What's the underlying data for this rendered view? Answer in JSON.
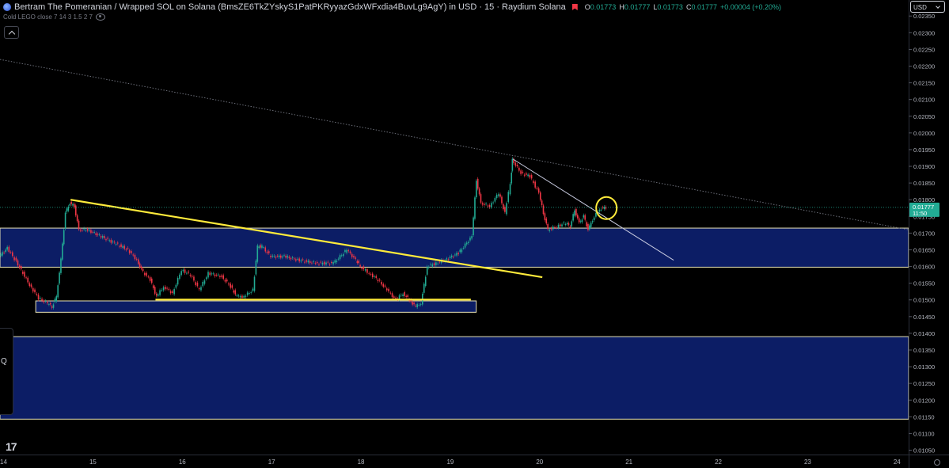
{
  "header": {
    "title": "Bertram The Pomeranian / Wrapped SOL on Solana (BmsZE6TkZYskyS1PatPKRyyazGdxWFxdia4BuvLg9AgY) in USD · 15 · Raydium Solana",
    "ohlc": [
      {
        "label": "O",
        "value": "0.01773"
      },
      {
        "label": "H",
        "value": "0.01777"
      },
      {
        "label": "L",
        "value": "0.01773"
      },
      {
        "label": "C",
        "value": "0.01777"
      },
      {
        "label": "",
        "value": "+0.00004 (+0.20%)"
      }
    ],
    "indicator": "Cold LEGO close 7 14 3 1.5 2 7",
    "currency": "USD",
    "logo": "17"
  },
  "icons": {
    "eye": "eye-icon",
    "collapse": "chevron-up-icon",
    "settings": "gear-icon",
    "logo": "tradingview-logo-icon"
  },
  "colors": {
    "background": "#000000",
    "up": "#22ab94",
    "down": "#f23645",
    "zone_fill": "#0d1f6e",
    "trend_yellow": "#ffeb3b"
  },
  "side_panel": {
    "label": "Q"
  },
  "chart_data": {
    "type": "candlestick",
    "title": "",
    "x_ticks": [
      "14",
      "15",
      "16",
      "17",
      "18",
      "19",
      "20",
      "21",
      "22",
      "23",
      "24"
    ],
    "x_range": [
      13.96,
      24.13
    ],
    "y_range": [
      0.01037,
      0.02398
    ],
    "y_ticks": [
      "0.02350",
      "0.02300",
      "0.02250",
      "0.02200",
      "0.02150",
      "0.02100",
      "0.02050",
      "0.02000",
      "0.01950",
      "0.01900",
      "0.01850",
      "0.01800",
      "0.01750",
      "0.01700",
      "0.01650",
      "0.01600",
      "0.01550",
      "0.01500",
      "0.01450",
      "0.01400",
      "0.01350",
      "0.01300",
      "0.01250",
      "0.01200",
      "0.01150",
      "0.01100",
      "0.01050"
    ],
    "current_price": {
      "value": "0.01777",
      "countdown": "11:50"
    },
    "price_path": [
      [
        13.96,
        0.0163
      ],
      [
        14.05,
        0.01655
      ],
      [
        14.15,
        0.01615
      ],
      [
        14.3,
        0.01545
      ],
      [
        14.4,
        0.01505
      ],
      [
        14.5,
        0.0149
      ],
      [
        14.55,
        0.0148
      ],
      [
        14.6,
        0.0151
      ],
      [
        14.65,
        0.0162
      ],
      [
        14.7,
        0.0176
      ],
      [
        14.75,
        0.0179
      ],
      [
        14.8,
        0.0178
      ],
      [
        14.85,
        0.0171
      ],
      [
        14.95,
        0.0171
      ],
      [
        15.1,
        0.0169
      ],
      [
        15.25,
        0.0167
      ],
      [
        15.4,
        0.0165
      ],
      [
        15.5,
        0.0162
      ],
      [
        15.55,
        0.0159
      ],
      [
        15.65,
        0.0156
      ],
      [
        15.72,
        0.0151
      ],
      [
        15.8,
        0.0154
      ],
      [
        15.9,
        0.0152
      ],
      [
        16.0,
        0.0159
      ],
      [
        16.1,
        0.01575
      ],
      [
        16.2,
        0.0153
      ],
      [
        16.3,
        0.0158
      ],
      [
        16.45,
        0.0157
      ],
      [
        16.55,
        0.0154
      ],
      [
        16.62,
        0.0151
      ],
      [
        16.7,
        0.0151
      ],
      [
        16.8,
        0.0153
      ],
      [
        16.85,
        0.0166
      ],
      [
        16.9,
        0.0166
      ],
      [
        17.0,
        0.0163
      ],
      [
        17.15,
        0.0163
      ],
      [
        17.3,
        0.0162
      ],
      [
        17.5,
        0.0161
      ],
      [
        17.7,
        0.0161
      ],
      [
        17.85,
        0.0165
      ],
      [
        17.95,
        0.0162
      ],
      [
        18.0,
        0.016
      ],
      [
        18.1,
        0.0158
      ],
      [
        18.2,
        0.0156
      ],
      [
        18.3,
        0.0153
      ],
      [
        18.4,
        0.015
      ],
      [
        18.48,
        0.0152
      ],
      [
        18.55,
        0.015
      ],
      [
        18.62,
        0.0148
      ],
      [
        18.68,
        0.0149
      ],
      [
        18.75,
        0.016
      ],
      [
        18.85,
        0.0161
      ],
      [
        18.95,
        0.0162
      ],
      [
        19.1,
        0.0164
      ],
      [
        19.25,
        0.0169
      ],
      [
        19.3,
        0.0186
      ],
      [
        19.35,
        0.0179
      ],
      [
        19.45,
        0.0178
      ],
      [
        19.55,
        0.0182
      ],
      [
        19.62,
        0.0176
      ],
      [
        19.68,
        0.0185
      ],
      [
        19.7,
        0.0192
      ],
      [
        19.8,
        0.0188
      ],
      [
        19.9,
        0.0187
      ],
      [
        20.0,
        0.0182
      ],
      [
        20.05,
        0.0176
      ],
      [
        20.1,
        0.0171
      ],
      [
        20.2,
        0.0172
      ],
      [
        20.3,
        0.0173
      ],
      [
        20.35,
        0.0172
      ],
      [
        20.4,
        0.0177
      ],
      [
        20.45,
        0.0173
      ],
      [
        20.5,
        0.0175
      ],
      [
        20.55,
        0.0171
      ],
      [
        20.6,
        0.0174
      ],
      [
        20.68,
        0.01773
      ],
      [
        20.75,
        0.01777
      ]
    ],
    "zones": [
      {
        "y_top": 0.01715,
        "y_bottom": 0.01598,
        "x_start": 13.96
      },
      {
        "y_top": 0.01497,
        "y_bottom": 0.01463,
        "x_start": 14.36,
        "x_end": 19.29
      },
      {
        "y_top": 0.0139,
        "y_bottom": 0.01143,
        "x_start": 13.96
      }
    ],
    "trend_lines": [
      {
        "style": "yellow",
        "points": [
          [
            14.75,
            0.018
          ],
          [
            20.03,
            0.01568
          ]
        ]
      },
      {
        "style": "yellow",
        "points": [
          [
            15.7,
            0.01501
          ],
          [
            19.23,
            0.01501
          ]
        ]
      },
      {
        "style": "white",
        "points": [
          [
            19.7,
            0.01922
          ],
          [
            21.5,
            0.01619
          ]
        ]
      },
      {
        "style": "dotted",
        "points": [
          [
            13.96,
            0.0222
          ],
          [
            24.13,
            0.0171
          ]
        ]
      }
    ],
    "annotation_circle": {
      "x": 20.73,
      "y": 0.01775
    }
  }
}
